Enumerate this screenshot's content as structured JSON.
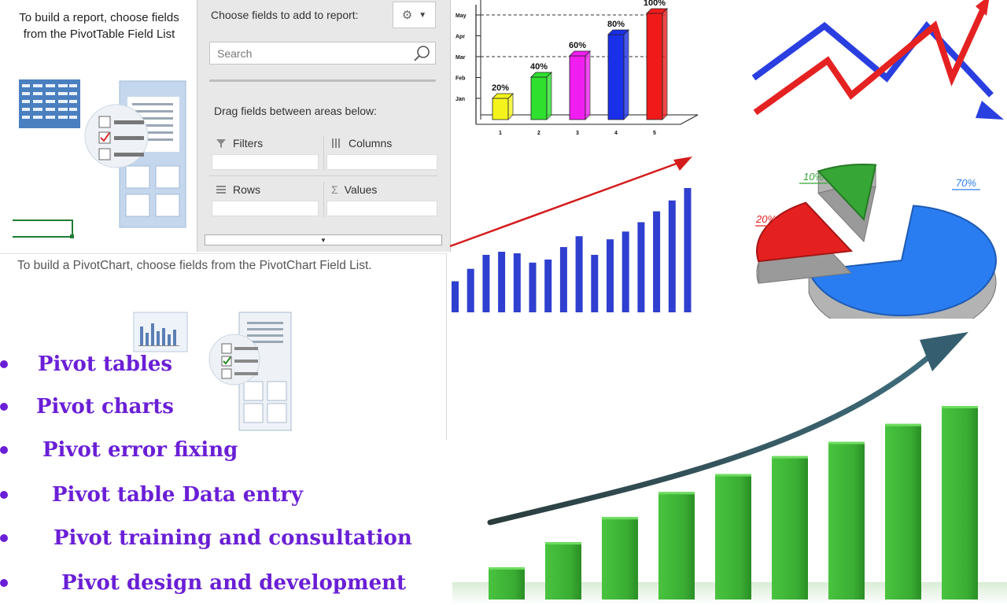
{
  "pivot_table": {
    "hint": "To build a report, choose fields from the PivotTable Field List"
  },
  "field_list": {
    "title": "Choose fields to add to report:",
    "search_placeholder": "Search",
    "drag_message": "Drag fields between areas below:",
    "areas": {
      "filters": "Filters",
      "columns": "Columns",
      "rows": "Rows",
      "values": "Values"
    }
  },
  "pivot_chart": {
    "hint": "To build a PivotChart, choose fields from the PivotChart Field List."
  },
  "services": [
    "Pivot tables",
    "Pivot charts",
    "Pivot error fixing",
    "Pivot table Data entry",
    "Pivot training and consultation",
    "Pivot design and development"
  ],
  "colors": {
    "accent": "#6a1fd6",
    "green": "#3cbf3c",
    "blue": "#2f3fcf",
    "red": "#e32020"
  },
  "chart_data": [
    {
      "type": "bar",
      "categories": [
        "1",
        "2",
        "3",
        "4",
        "5"
      ],
      "values": [
        20,
        40,
        60,
        80,
        100
      ],
      "data_labels": [
        "20%",
        "40%",
        "60%",
        "80%",
        "100%"
      ],
      "y_tick_labels": [
        "Jan",
        "Feb",
        "Mar",
        "Apr",
        "May"
      ],
      "bar_colors": [
        "#f4f41c",
        "#2fe02f",
        "#f01ef0",
        "#1a2fe8",
        "#f01a1a"
      ]
    },
    {
      "type": "line",
      "series": [
        {
          "values": [
            3,
            6,
            3,
            6,
            2
          ],
          "color": "#2a3fe0"
        },
        {
          "values": [
            1,
            4,
            2,
            6,
            3,
            7
          ],
          "color": "#e52222"
        }
      ]
    },
    {
      "type": "bar",
      "values": [
        20,
        28,
        37,
        39,
        38,
        32,
        34,
        42,
        49,
        37,
        47,
        52,
        58,
        65,
        72,
        80
      ]
    },
    {
      "type": "pie",
      "slices": [
        {
          "label": "70%",
          "value": 70,
          "color": "#2a7df0"
        },
        {
          "label": "20%",
          "value": 20,
          "color": "#e52020"
        },
        {
          "label": "10%",
          "value": 10,
          "color": "#36a636"
        }
      ]
    },
    {
      "type": "bar",
      "values": [
        9,
        16,
        23,
        30,
        35,
        40,
        44,
        49,
        54
      ]
    }
  ]
}
